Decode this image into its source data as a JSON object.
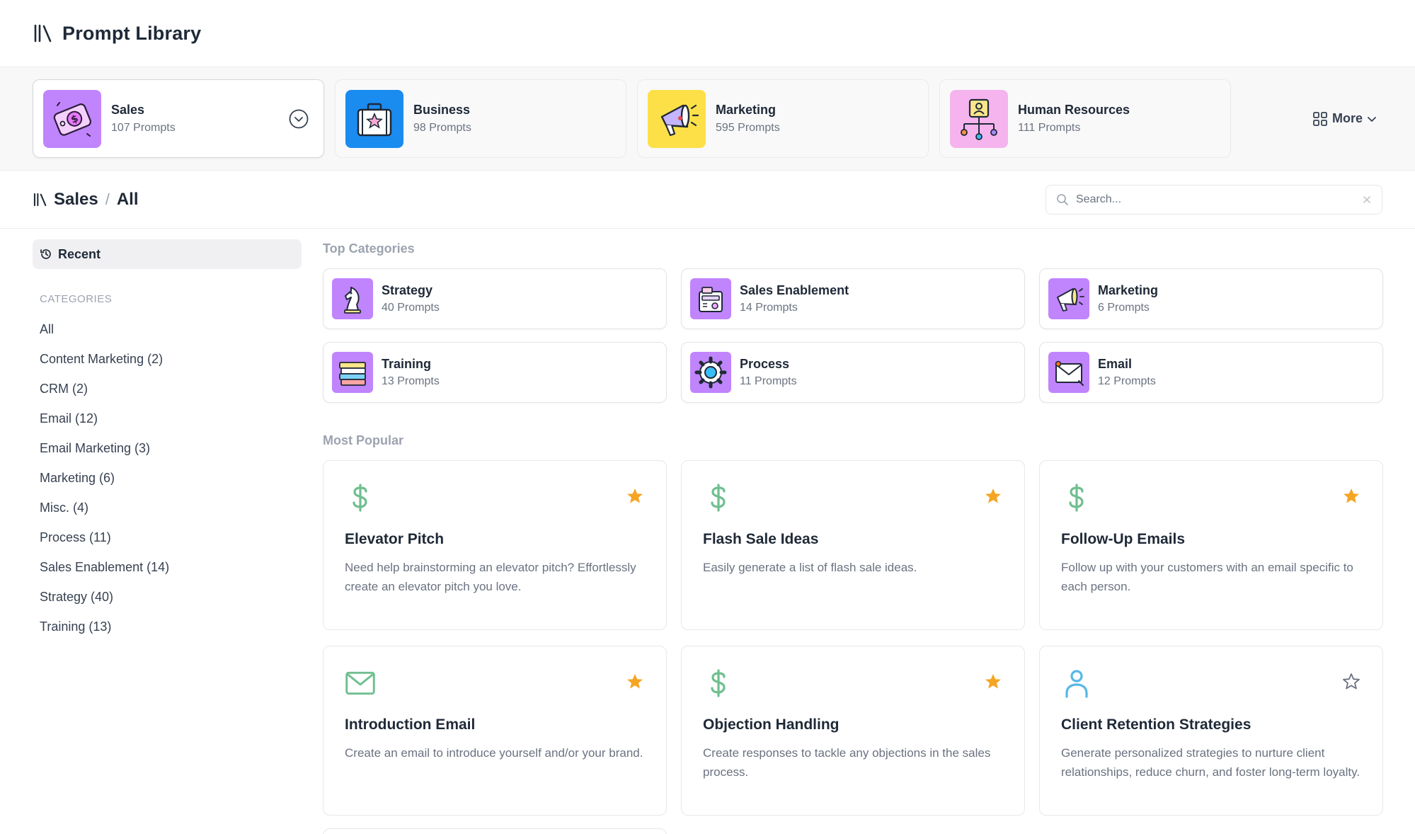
{
  "app": {
    "title": "Prompt Library"
  },
  "strip": {
    "cards": [
      {
        "name": "Sales",
        "count": "107 Prompts",
        "icon": "sales-tag-icon",
        "bg": "#c084fc"
      },
      {
        "name": "Business",
        "count": "98 Prompts",
        "icon": "briefcase-icon",
        "bg": "#1a8cf0"
      },
      {
        "name": "Marketing",
        "count": "595 Prompts",
        "icon": "megaphone-icon",
        "bg": "#fde047"
      },
      {
        "name": "Human Resources",
        "count": "111 Prompts",
        "icon": "org-chart-icon",
        "bg": "#f5b4ee"
      }
    ],
    "more_label": "More"
  },
  "breadcrumb": {
    "section": "Sales",
    "sep": "/",
    "current": "All"
  },
  "search": {
    "placeholder": "Search..."
  },
  "sidebar": {
    "recent_label": "Recent",
    "categories_heading": "CATEGORIES",
    "categories": [
      "All",
      "Content Marketing (2)",
      "CRM (2)",
      "Email (12)",
      "Email Marketing (3)",
      "Marketing (6)",
      "Misc. (4)",
      "Process (11)",
      "Sales Enablement (14)",
      "Strategy (40)",
      "Training (13)"
    ]
  },
  "top_categories": {
    "title": "Top Categories",
    "items": [
      {
        "name": "Strategy",
        "count": "40 Prompts",
        "icon": "chess-knight-icon"
      },
      {
        "name": "Sales Enablement",
        "count": "14 Prompts",
        "icon": "cash-register-icon"
      },
      {
        "name": "Marketing",
        "count": "6 Prompts",
        "icon": "megaphone-icon"
      },
      {
        "name": "Training",
        "count": "13 Prompts",
        "icon": "books-icon"
      },
      {
        "name": "Process",
        "count": "11 Prompts",
        "icon": "gear-icon"
      },
      {
        "name": "Email",
        "count": "12 Prompts",
        "icon": "envelope-icon"
      }
    ]
  },
  "most_popular": {
    "title": "Most Popular",
    "items": [
      {
        "title": "Elevator Pitch",
        "desc": "Need help brainstorming an elevator pitch? Effortlessly create an elevator pitch you love.",
        "icon": "dollar-icon",
        "starred": true
      },
      {
        "title": "Flash Sale Ideas",
        "desc": "Easily generate a list of flash sale ideas.",
        "icon": "dollar-icon",
        "starred": true
      },
      {
        "title": "Follow-Up Emails",
        "desc": "Follow up with your customers with an email specific to each person.",
        "icon": "dollar-icon",
        "starred": true
      },
      {
        "title": "Introduction Email",
        "desc": "Create an email to introduce yourself and/or your brand.",
        "icon": "mail-icon",
        "starred": true
      },
      {
        "title": "Objection Handling",
        "desc": "Create responses to tackle any objections in the sales process.",
        "icon": "dollar-icon",
        "starred": true
      },
      {
        "title": "Client Retention Strategies",
        "desc": "Generate personalized strategies to nurture client relationships, reduce churn, and foster long-term loyalty.",
        "icon": "user-icon",
        "starred": false
      }
    ]
  },
  "colors": {
    "accent_purple": "#c084fc",
    "green_icon": "#6fbf8f",
    "blue_icon": "#56b7e6",
    "star": "#f5a524"
  }
}
